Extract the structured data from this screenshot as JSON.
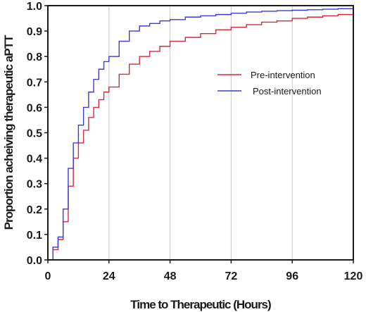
{
  "chart_data": {
    "type": "line",
    "title": "",
    "xlabel": "Time to Therapeutic (Hours)",
    "ylabel": "Proportion acheiving therapeutic aPTT",
    "xlim": [
      0,
      120
    ],
    "ylim": [
      0,
      1.0
    ],
    "x_ticks": [
      "0",
      "24",
      "48",
      "72",
      "96",
      "120"
    ],
    "y_ticks": [
      "0.0",
      "0.1",
      "0.2",
      "0.3",
      "0.4",
      "0.5",
      "0.6",
      "0.7",
      "0.8",
      "0.9",
      "1.0"
    ],
    "x_tick_values": [
      0,
      24,
      48,
      72,
      96,
      120
    ],
    "y_tick_values": [
      0,
      0.1,
      0.2,
      0.3,
      0.4,
      0.5,
      0.6,
      0.7,
      0.8,
      0.9,
      1.0
    ],
    "grid": "vertical",
    "legend_position": "right-middle",
    "series": [
      {
        "name": "Pre-intervention",
        "color": "#d62a3a",
        "x": [
          0,
          2,
          4,
          6,
          8,
          10,
          12,
          14,
          16,
          18,
          20,
          22,
          24,
          28,
          32,
          36,
          40,
          44,
          48,
          54,
          60,
          66,
          72,
          78,
          84,
          90,
          96,
          102,
          108,
          114,
          120
        ],
        "y": [
          0,
          0.04,
          0.08,
          0.15,
          0.29,
          0.4,
          0.46,
          0.51,
          0.56,
          0.6,
          0.63,
          0.66,
          0.68,
          0.73,
          0.77,
          0.8,
          0.82,
          0.84,
          0.86,
          0.875,
          0.89,
          0.905,
          0.915,
          0.925,
          0.935,
          0.94,
          0.95,
          0.955,
          0.96,
          0.965,
          0.97
        ]
      },
      {
        "name": "Post-intervention",
        "color": "#3b3bd6",
        "x": [
          0,
          2,
          4,
          6,
          8,
          10,
          12,
          14,
          16,
          18,
          20,
          22,
          24,
          28,
          32,
          36,
          40,
          44,
          48,
          54,
          60,
          66,
          72,
          78,
          84,
          90,
          96,
          102,
          108,
          114,
          120
        ],
        "y": [
          0,
          0.05,
          0.09,
          0.2,
          0.36,
          0.46,
          0.53,
          0.6,
          0.66,
          0.71,
          0.75,
          0.78,
          0.8,
          0.86,
          0.9,
          0.92,
          0.93,
          0.94,
          0.945,
          0.955,
          0.96,
          0.965,
          0.97,
          0.975,
          0.978,
          0.98,
          0.982,
          0.984,
          0.986,
          0.988,
          0.99
        ]
      }
    ]
  }
}
